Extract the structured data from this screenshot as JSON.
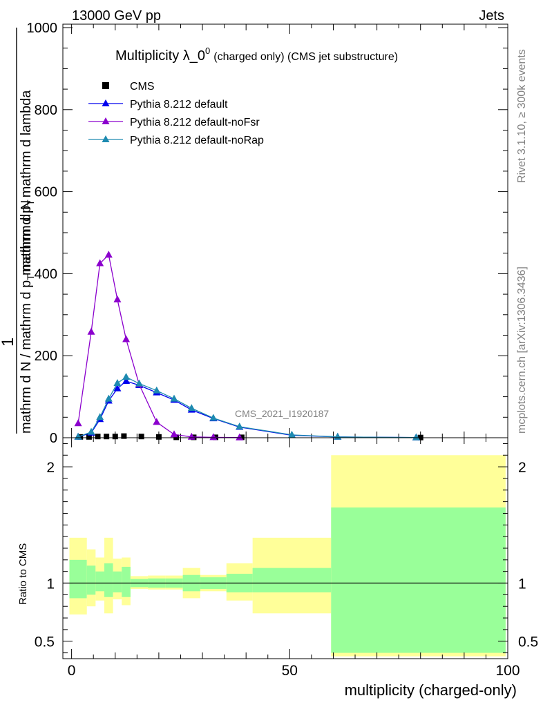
{
  "header": {
    "energy_label": "13000 GeV pp",
    "category_label": "Jets"
  },
  "side_labels": {
    "rivet": "Rivet 3.1.10, ≥ 300k events",
    "mcplots": "mcplots.cern.ch [arXiv:1306.3436]"
  },
  "chart_data": [
    {
      "type": "line",
      "title_main": "Multiplicity λ_0",
      "title_sup": "0",
      "title_rest": "(charged only) (CMS jet substructure)",
      "ylabel_parts": [
        "1",
        "mathrm d N / mathrm d p",
        "T",
        "mathrm d N",
        "mathrm d p",
        "T",
        "mathrm d lambda"
      ],
      "xlim": [
        -2,
        100
      ],
      "ylim": [
        0,
        1000
      ],
      "y_ticks": [
        0,
        200,
        400,
        600,
        800,
        1000
      ],
      "watermark": "CMS_2021_I1920187",
      "legend_position": "top-left",
      "series": [
        {
          "name": "CMS",
          "color": "#000000",
          "marker": "square",
          "x": [
            2,
            4,
            6,
            8,
            10,
            12,
            16,
            20,
            24,
            28,
            33,
            39,
            80
          ],
          "y": [
            2,
            2,
            3,
            3,
            3,
            4,
            3,
            2,
            1,
            1,
            1,
            1,
            0.5
          ]
        },
        {
          "name": "Pythia 8.212 default",
          "color": "#0000ee",
          "marker": "triangle",
          "x": [
            1.5,
            4.5,
            6.5,
            8.5,
            10.5,
            12.5,
            15.5,
            19.5,
            23.5,
            27.5,
            32.5,
            38.5,
            50.5,
            61,
            79
          ],
          "y": [
            2,
            12,
            45,
            90,
            120,
            138,
            128,
            110,
            92,
            68,
            47,
            26,
            6,
            2,
            0.5
          ]
        },
        {
          "name": "Pythia 8.212 default-noFsr",
          "color": "#8b00cd",
          "marker": "triangle",
          "x": [
            1.5,
            4.5,
            6.5,
            8.5,
            10.5,
            12.5,
            15.5,
            19.5,
            23.5,
            27.5,
            32.5,
            38.5
          ],
          "y": [
            35,
            258,
            425,
            446,
            337,
            240,
            130,
            38,
            8,
            2,
            1,
            0.5
          ]
        },
        {
          "name": "Pythia 8.212 default-noRap",
          "color": "#1d8ab0",
          "marker": "triangle",
          "x": [
            1.5,
            4.5,
            6.5,
            8.5,
            10.5,
            12.5,
            15.5,
            19.5,
            23.5,
            27.5,
            32.5,
            38.5,
            50.5,
            61,
            79
          ],
          "y": [
            2,
            14,
            50,
            95,
            133,
            148,
            132,
            115,
            95,
            72,
            48,
            27,
            7,
            2,
            0.5
          ]
        }
      ]
    },
    {
      "type": "area",
      "ylabel": "Ratio to CMS",
      "xlabel": "multiplicity (charged-only)",
      "xlim": [
        -2,
        100
      ],
      "ylim": [
        0.35,
        2.25
      ],
      "x_ticks": [
        0,
        50,
        100
      ],
      "y_ticks": [
        0.5,
        1,
        2
      ],
      "reference_line": 1,
      "stat_color": "#99ff99",
      "syst_color": "#ffff99",
      "bins": [
        {
          "x0": -0.5,
          "x1": 3.5,
          "inner_lo": 0.87,
          "inner_hi": 1.2,
          "outer_lo": 0.73,
          "outer_hi": 1.39
        },
        {
          "x0": 3.5,
          "x1": 5.5,
          "inner_lo": 0.9,
          "inner_hi": 1.15,
          "outer_lo": 0.8,
          "outer_hi": 1.29
        },
        {
          "x0": 5.5,
          "x1": 7.5,
          "inner_lo": 0.93,
          "inner_hi": 1.1,
          "outer_lo": 0.85,
          "outer_hi": 1.22
        },
        {
          "x0": 7.5,
          "x1": 9.5,
          "inner_lo": 0.88,
          "inner_hi": 1.17,
          "outer_lo": 0.74,
          "outer_hi": 1.39
        },
        {
          "x0": 9.5,
          "x1": 11.5,
          "inner_lo": 0.92,
          "inner_hi": 1.1,
          "outer_lo": 0.86,
          "outer_hi": 1.21
        },
        {
          "x0": 11.5,
          "x1": 13.5,
          "inner_lo": 0.88,
          "inner_hi": 1.14,
          "outer_lo": 0.81,
          "outer_hi": 1.22
        },
        {
          "x0": 13.5,
          "x1": 17.5,
          "inner_lo": 0.965,
          "inner_hi": 1.035,
          "outer_lo": 0.95,
          "outer_hi": 1.06
        },
        {
          "x0": 17.5,
          "x1": 21.5,
          "inner_lo": 0.96,
          "inner_hi": 1.04,
          "outer_lo": 0.945,
          "outer_hi": 1.065
        },
        {
          "x0": 21.5,
          "x1": 25.5,
          "inner_lo": 0.96,
          "inner_hi": 1.04,
          "outer_lo": 0.945,
          "outer_hi": 1.065
        },
        {
          "x0": 25.5,
          "x1": 29.5,
          "inner_lo": 0.93,
          "inner_hi": 1.07,
          "outer_lo": 0.87,
          "outer_hi": 1.13
        },
        {
          "x0": 29.5,
          "x1": 35.5,
          "inner_lo": 0.95,
          "inner_hi": 1.05,
          "outer_lo": 0.93,
          "outer_hi": 1.07
        },
        {
          "x0": 35.5,
          "x1": 41.5,
          "inner_lo": 0.92,
          "inner_hi": 1.08,
          "outer_lo": 0.85,
          "outer_hi": 1.17
        },
        {
          "x0": 41.5,
          "x1": 59.5,
          "inner_lo": 0.92,
          "inner_hi": 1.13,
          "outer_lo": 0.74,
          "outer_hi": 1.39
        },
        {
          "x0": 59.5,
          "x1": 99.5,
          "inner_lo": 0.4,
          "inner_hi": 1.65,
          "outer_lo": 0.37,
          "outer_hi": 2.1
        }
      ]
    }
  ]
}
